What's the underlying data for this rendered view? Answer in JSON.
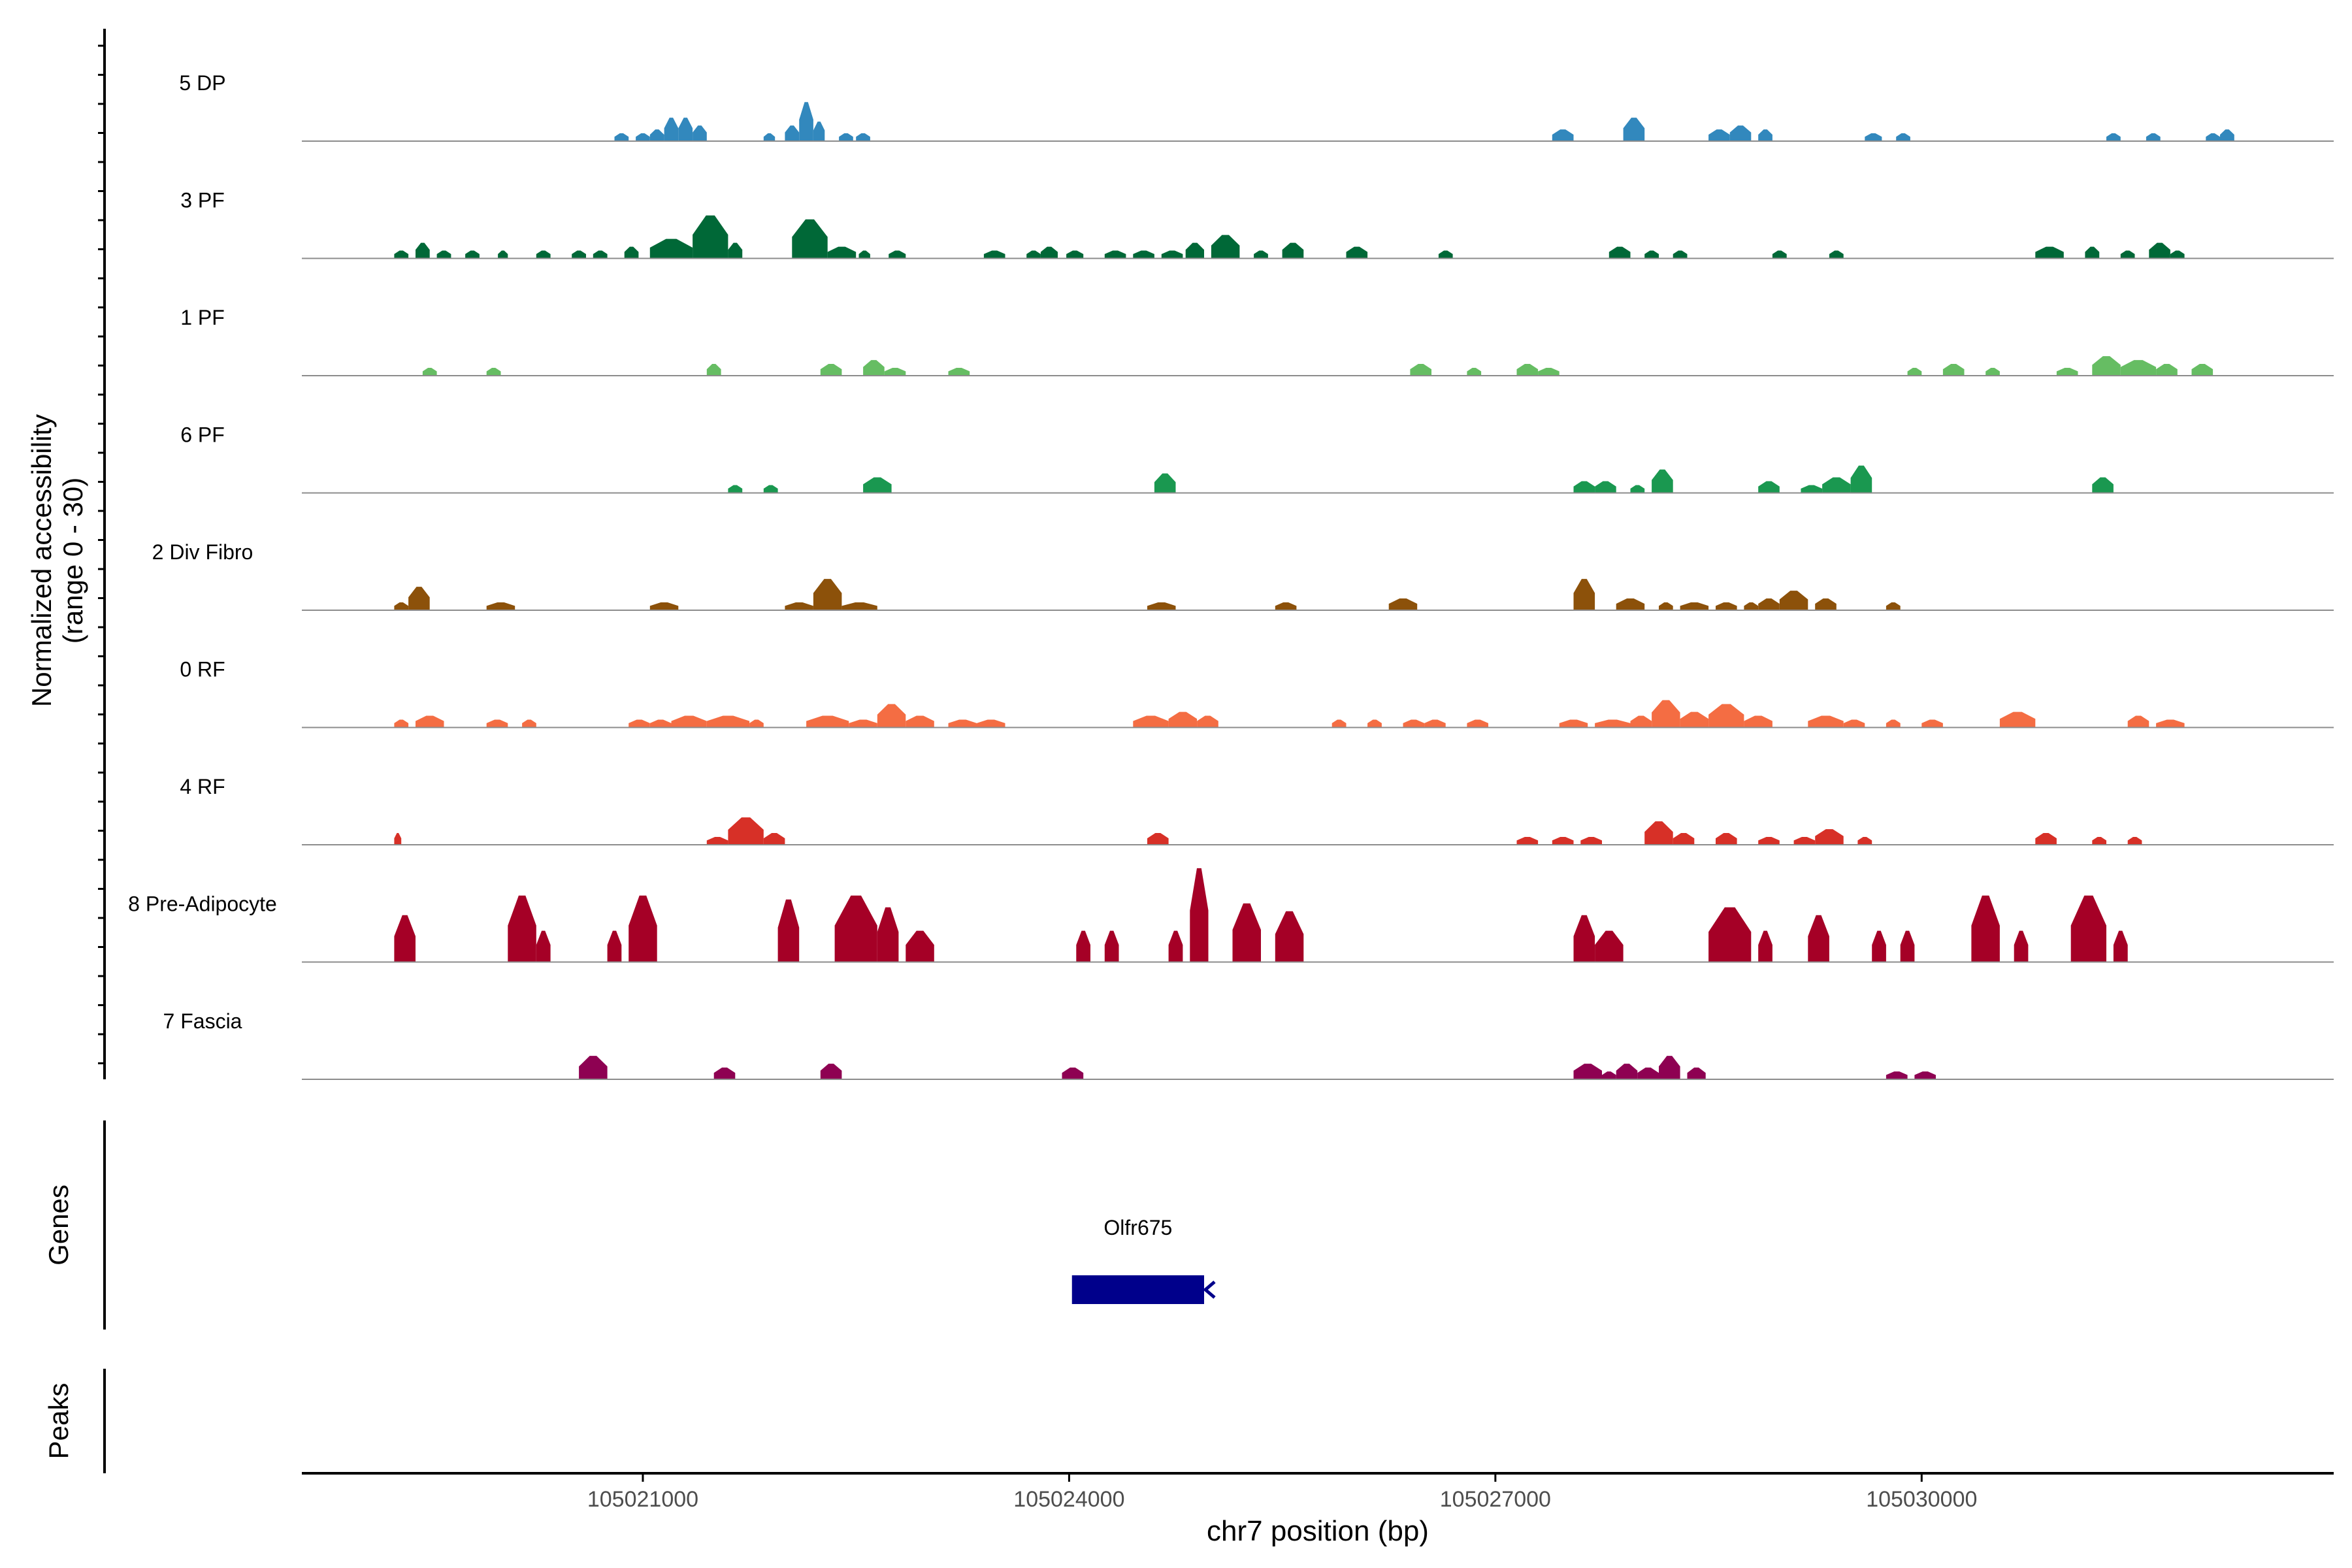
{
  "chart_data": {
    "type": "area",
    "title": "",
    "ylabel_line1": "Normalized accessibility",
    "ylabel_line2": "(range 0 - 30)",
    "xlabel": "chr7 position (bp)",
    "xlim": [
      105018600,
      105032900
    ],
    "ylim": [
      0,
      30
    ],
    "x_ticks": [
      "105021000",
      "105024000",
      "105027000",
      "105030000"
    ],
    "x_tick_values": [
      105021000,
      105024000,
      105027000,
      105030000
    ],
    "tracks": [
      {
        "name": "5 DP",
        "color": "#3288BD",
        "peaks": [
          [
            105020800,
            105020900,
            2
          ],
          [
            105020950,
            105021050,
            2
          ],
          [
            105021050,
            105021150,
            3
          ],
          [
            105021150,
            105021250,
            6
          ],
          [
            105021250,
            105021350,
            6
          ],
          [
            105021350,
            105021450,
            4
          ],
          [
            105021850,
            105021930,
            2
          ],
          [
            105022000,
            105022100,
            4
          ],
          [
            105022100,
            105022200,
            10
          ],
          [
            105022200,
            105022280,
            5
          ],
          [
            105022380,
            105022480,
            2
          ],
          [
            105022500,
            105022600,
            2
          ],
          [
            105027400,
            105027550,
            3
          ],
          [
            105027900,
            105028050,
            6
          ],
          [
            105028500,
            105028650,
            3
          ],
          [
            105028650,
            105028800,
            4
          ],
          [
            105028850,
            105028950,
            3
          ],
          [
            105029600,
            105029720,
            2
          ],
          [
            105029820,
            105029920,
            2
          ],
          [
            105031300,
            105031400,
            2
          ],
          [
            105031580,
            105031680,
            2
          ],
          [
            105032000,
            105032100,
            2
          ],
          [
            105032100,
            105032200,
            3
          ]
        ]
      },
      {
        "name": "3 PF",
        "color": "#006837",
        "peaks": [
          [
            105019250,
            105019350,
            2
          ],
          [
            105019400,
            105019500,
            4
          ],
          [
            105019550,
            105019650,
            2
          ],
          [
            105019750,
            105019850,
            2
          ],
          [
            105019980,
            105020050,
            2
          ],
          [
            105020250,
            105020350,
            2
          ],
          [
            105020500,
            105020600,
            2
          ],
          [
            105020650,
            105020750,
            2
          ],
          [
            105020870,
            105020970,
            3
          ],
          [
            105021050,
            105021350,
            5
          ],
          [
            105021350,
            105021600,
            11
          ],
          [
            105021600,
            105021700,
            4
          ],
          [
            105022050,
            105022300,
            10
          ],
          [
            105022300,
            105022500,
            3
          ],
          [
            105022520,
            105022600,
            2
          ],
          [
            105022730,
            105022850,
            2
          ],
          [
            105023400,
            105023550,
            2
          ],
          [
            105023700,
            105023800,
            2
          ],
          [
            105023800,
            105023920,
            3
          ],
          [
            105023980,
            105024100,
            2
          ],
          [
            105024250,
            105024400,
            2
          ],
          [
            105024450,
            105024600,
            2
          ],
          [
            105024650,
            105024800,
            2
          ],
          [
            105024820,
            105024950,
            4
          ],
          [
            105025000,
            105025200,
            6
          ],
          [
            105025300,
            105025400,
            2
          ],
          [
            105025500,
            105025650,
            4
          ],
          [
            105025950,
            105026100,
            3
          ],
          [
            105026600,
            105026700,
            2
          ],
          [
            105027800,
            105027950,
            3
          ],
          [
            105028050,
            105028150,
            2
          ],
          [
            105028250,
            105028350,
            2
          ],
          [
            105028950,
            105029050,
            2
          ],
          [
            105029350,
            105029450,
            2
          ],
          [
            105030800,
            105031000,
            3
          ],
          [
            105031150,
            105031250,
            3
          ],
          [
            105031400,
            105031500,
            2
          ],
          [
            105031600,
            105031750,
            4
          ],
          [
            105031750,
            105031850,
            2
          ]
        ]
      },
      {
        "name": "1 PF",
        "color": "#66BD63",
        "peaks": [
          [
            105019450,
            105019550,
            2
          ],
          [
            105019900,
            105020000,
            2
          ],
          [
            105021450,
            105021550,
            3
          ],
          [
            105022250,
            105022400,
            3
          ],
          [
            105022550,
            105022700,
            4
          ],
          [
            105022700,
            105022850,
            2
          ],
          [
            105023150,
            105023300,
            2
          ],
          [
            105026400,
            105026550,
            3
          ],
          [
            105026800,
            105026900,
            2
          ],
          [
            105027150,
            105027300,
            3
          ],
          [
            105027300,
            105027450,
            2
          ],
          [
            105029900,
            105030000,
            2
          ],
          [
            105030150,
            105030300,
            3
          ],
          [
            105030450,
            105030550,
            2
          ],
          [
            105030950,
            105031100,
            2
          ],
          [
            105031200,
            105031400,
            5
          ],
          [
            105031400,
            105031650,
            4
          ],
          [
            105031650,
            105031800,
            3
          ],
          [
            105031900,
            105032050,
            3
          ]
        ]
      },
      {
        "name": "6 PF",
        "color": "#1A9850",
        "peaks": [
          [
            105021600,
            105021700,
            2
          ],
          [
            105021850,
            105021950,
            2
          ],
          [
            105022550,
            105022750,
            4
          ],
          [
            105024600,
            105024750,
            5
          ],
          [
            105027550,
            105027700,
            3
          ],
          [
            105027700,
            105027850,
            3
          ],
          [
            105027950,
            105028050,
            2
          ],
          [
            105028100,
            105028250,
            6
          ],
          [
            105028850,
            105029000,
            3
          ],
          [
            105029150,
            105029300,
            2
          ],
          [
            105029300,
            105029500,
            4
          ],
          [
            105029500,
            105029650,
            7
          ],
          [
            105031200,
            105031350,
            4
          ]
        ]
      },
      {
        "name": "2 Div Fibro",
        "color": "#8C510A",
        "peaks": [
          [
            105019250,
            105019350,
            2
          ],
          [
            105019350,
            105019500,
            6
          ],
          [
            105019900,
            105020100,
            2
          ],
          [
            105021050,
            105021250,
            2
          ],
          [
            105022000,
            105022200,
            2
          ],
          [
            105022200,
            105022400,
            8
          ],
          [
            105022400,
            105022650,
            2
          ],
          [
            105024550,
            105024750,
            2
          ],
          [
            105025450,
            105025600,
            2
          ],
          [
            105026250,
            105026450,
            3
          ],
          [
            105027550,
            105027700,
            8
          ],
          [
            105027850,
            105028050,
            3
          ],
          [
            105028150,
            105028250,
            2
          ],
          [
            105028300,
            105028500,
            2
          ],
          [
            105028550,
            105028700,
            2
          ],
          [
            105028750,
            105028850,
            2
          ],
          [
            105028850,
            105029000,
            3
          ],
          [
            105029000,
            105029200,
            5
          ],
          [
            105029250,
            105029400,
            3
          ],
          [
            105029750,
            105029850,
            2
          ]
        ]
      },
      {
        "name": "0 RF",
        "color": "#F46D43",
        "peaks": [
          [
            105019250,
            105019350,
            2
          ],
          [
            105019400,
            105019600,
            3
          ],
          [
            105019900,
            105020050,
            2
          ],
          [
            105020150,
            105020250,
            2
          ],
          [
            105020900,
            105021050,
            2
          ],
          [
            105021050,
            105021200,
            2
          ],
          [
            105021200,
            105021450,
            3
          ],
          [
            105021450,
            105021750,
            3
          ],
          [
            105021750,
            105021850,
            2
          ],
          [
            105022150,
            105022450,
            3
          ],
          [
            105022450,
            105022650,
            2
          ],
          [
            105022650,
            105022850,
            6
          ],
          [
            105022850,
            105023050,
            3
          ],
          [
            105023150,
            105023350,
            2
          ],
          [
            105023350,
            105023550,
            2
          ],
          [
            105024450,
            105024700,
            3
          ],
          [
            105024700,
            105024900,
            4
          ],
          [
            105024900,
            105025050,
            3
          ],
          [
            105025850,
            105025950,
            2
          ],
          [
            105026100,
            105026200,
            2
          ],
          [
            105026350,
            105026500,
            2
          ],
          [
            105026500,
            105026650,
            2
          ],
          [
            105026800,
            105026950,
            2
          ],
          [
            105027450,
            105027650,
            2
          ],
          [
            105027700,
            105027950,
            2
          ],
          [
            105027950,
            105028100,
            3
          ],
          [
            105028100,
            105028300,
            7
          ],
          [
            105028300,
            105028500,
            4
          ],
          [
            105028500,
            105028750,
            6
          ],
          [
            105028750,
            105028950,
            3
          ],
          [
            105029200,
            105029450,
            3
          ],
          [
            105029450,
            105029600,
            2
          ],
          [
            105029750,
            105029850,
            2
          ],
          [
            105030000,
            105030150,
            2
          ],
          [
            105030550,
            105030800,
            4
          ],
          [
            105031450,
            105031600,
            3
          ],
          [
            105031650,
            105031850,
            2
          ]
        ]
      },
      {
        "name": "4 RF",
        "color": "#D73027",
        "peaks": [
          [
            105019250,
            105019300,
            3
          ],
          [
            105021450,
            105021600,
            2
          ],
          [
            105021600,
            105021850,
            7
          ],
          [
            105021850,
            105022000,
            3
          ],
          [
            105024550,
            105024700,
            3
          ],
          [
            105027150,
            105027300,
            2
          ],
          [
            105027400,
            105027550,
            2
          ],
          [
            105027600,
            105027750,
            2
          ],
          [
            105028050,
            105028250,
            6
          ],
          [
            105028250,
            105028400,
            3
          ],
          [
            105028550,
            105028700,
            3
          ],
          [
            105028850,
            105029000,
            2
          ],
          [
            105029100,
            105029250,
            2
          ],
          [
            105029250,
            105029450,
            4
          ],
          [
            105029550,
            105029650,
            2
          ],
          [
            105030800,
            105030950,
            3
          ],
          [
            105031200,
            105031300,
            2
          ],
          [
            105031450,
            105031550,
            2
          ]
        ]
      },
      {
        "name": "8 Pre-Adipocyte",
        "color": "#A50026",
        "peaks": [
          [
            105019250,
            105019400,
            12
          ],
          [
            105020050,
            105020250,
            17
          ],
          [
            105020250,
            105020350,
            8
          ],
          [
            105020750,
            105020850,
            8
          ],
          [
            105020900,
            105021100,
            17
          ],
          [
            105021950,
            105022100,
            16
          ],
          [
            105022350,
            105022650,
            17
          ],
          [
            105022650,
            105022800,
            14
          ],
          [
            105022850,
            105023050,
            8
          ],
          [
            105024050,
            105024150,
            8
          ],
          [
            105024250,
            105024350,
            8
          ],
          [
            105024700,
            105024800,
            8
          ],
          [
            105024850,
            105024980,
            24
          ],
          [
            105025150,
            105025350,
            15
          ],
          [
            105025450,
            105025650,
            13
          ],
          [
            105027550,
            105027700,
            12
          ],
          [
            105027700,
            105027900,
            8
          ],
          [
            105028500,
            105028800,
            14
          ],
          [
            105028850,
            105028950,
            8
          ],
          [
            105029200,
            105029350,
            12
          ],
          [
            105029650,
            105029750,
            8
          ],
          [
            105029850,
            105029950,
            8
          ],
          [
            105030350,
            105030550,
            17
          ],
          [
            105030650,
            105030750,
            8
          ],
          [
            105031050,
            105031300,
            17
          ],
          [
            105031350,
            105031450,
            8
          ]
        ]
      },
      {
        "name": "7 Fascia",
        "color": "#8E0152",
        "peaks": [
          [
            105020550,
            105020750,
            6
          ],
          [
            105021500,
            105021650,
            3
          ],
          [
            105022250,
            105022400,
            4
          ],
          [
            105023950,
            105024100,
            3
          ],
          [
            105027550,
            105027750,
            4
          ],
          [
            105027750,
            105027850,
            2
          ],
          [
            105027850,
            105028000,
            4
          ],
          [
            105028000,
            105028150,
            3
          ],
          [
            105028150,
            105028300,
            6
          ],
          [
            105028350,
            105028480,
            3
          ],
          [
            105029750,
            105029900,
            2
          ],
          [
            105029950,
            105030100,
            2
          ]
        ]
      }
    ],
    "genes_label": "Genes",
    "peaks_label": "Peaks",
    "genes": [
      {
        "name": "Olfr675",
        "start": 105024020,
        "end": 105024950,
        "strand": "-",
        "color": "#00008B"
      }
    ]
  }
}
